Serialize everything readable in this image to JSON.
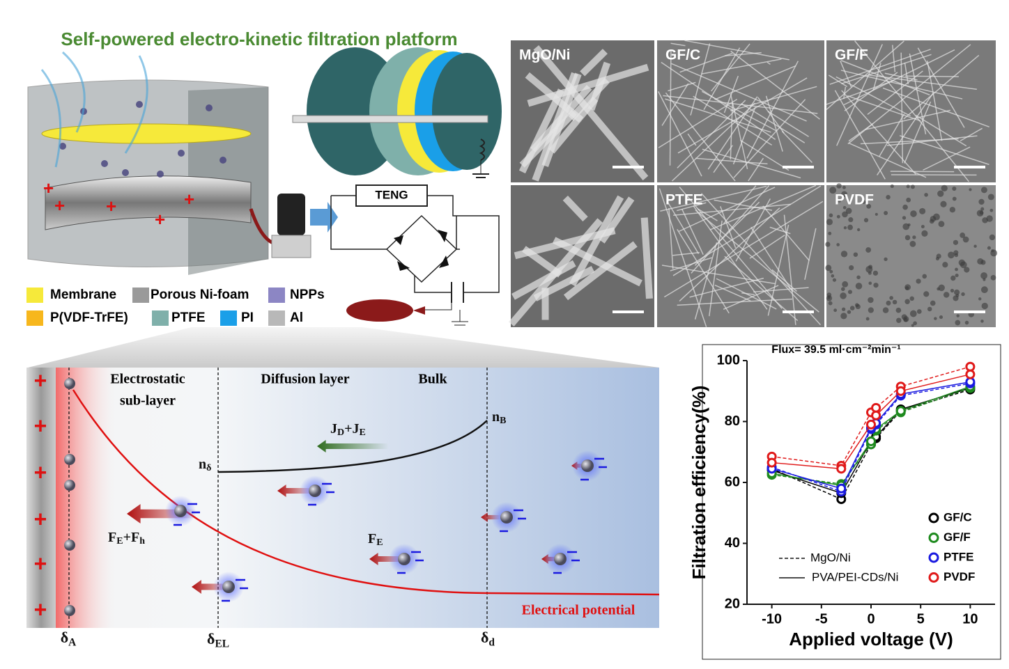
{
  "header": {
    "title": "Self-powered electro-kinetic filtration platform"
  },
  "legend": {
    "items": [
      {
        "label": "Membrane",
        "color": "#f6e93a"
      },
      {
        "label": "Porous Ni-foam",
        "color": "#9a9a9a"
      },
      {
        "label": "NPPs",
        "color": "#8c86c4"
      },
      {
        "label": "P(VDF-TrFE)",
        "color": "#f7b71d"
      },
      {
        "label": "PTFE",
        "color": "#7fb0aa"
      },
      {
        "label": "PI",
        "color": "#1a9fe8"
      },
      {
        "label": "Al",
        "color": "#b8b8b8"
      }
    ]
  },
  "teng": {
    "label": "TENG"
  },
  "sem": {
    "panels": [
      "MgO/Ni",
      "GF/C",
      "GF/F",
      "PTFE",
      "PVDF"
    ]
  },
  "diagram": {
    "electrostatic": [
      "Electrostatic",
      "sub-layer"
    ],
    "diffusion": "Diffusion layer",
    "bulk": "Bulk",
    "n_b": [
      {
        "t": "n",
        "s": "B"
      }
    ],
    "n_delta": [
      {
        "t": "n",
        "s": "δ"
      }
    ],
    "jd_je": [
      {
        "t": "J",
        "s": "D"
      },
      {
        "t": "+J",
        "s": "E"
      }
    ],
    "fe_fh": [
      {
        "t": "F",
        "s": "E"
      },
      {
        "t": "+F",
        "s": "h"
      }
    ],
    "fe": [
      {
        "t": "F",
        "s": "E"
      }
    ],
    "potential": "Electrical potential",
    "delta_a": [
      {
        "t": "δ",
        "s": "A"
      }
    ],
    "delta_el": [
      {
        "t": "δ",
        "s": "EL"
      }
    ],
    "delta_d": [
      {
        "t": "δ",
        "s": "d"
      }
    ]
  },
  "chart_data": {
    "type": "line",
    "title": "Flux= 39.5 ml·cm⁻²min⁻¹",
    "x_label": "Applied voltage (V)",
    "y_label": "Filtration efficiency(%)",
    "x": [
      -10,
      -3,
      0,
      0.5,
      3,
      10
    ],
    "xlim": [
      -12.5,
      12.5
    ],
    "xticks": [
      -10,
      -5,
      0,
      5,
      10
    ],
    "ylim": [
      20,
      100
    ],
    "yticks": [
      20,
      40,
      60,
      80,
      100
    ],
    "line_styles": [
      {
        "name": "MgO/Ni",
        "dash": "5 3"
      },
      {
        "name": "PVA/PEI-CDs/Ni",
        "dash": "none"
      }
    ],
    "series": [
      {
        "name": "GF/C",
        "color": "#000000",
        "values": [
          [
            64.5,
            54.5,
            72.5,
            74.5,
            83.5,
            90.5
          ],
          [
            64,
            56.5,
            73.5,
            75,
            84,
            91
          ]
        ]
      },
      {
        "name": "GF/F",
        "color": "#1e8a1e",
        "values": [
          [
            62.5,
            59.5,
            72.5,
            77,
            83,
            91
          ],
          [
            63,
            59,
            73.5,
            77.5,
            83.5,
            91.5
          ]
        ]
      },
      {
        "name": "PTFE",
        "color": "#1a1ae0",
        "values": [
          [
            65,
            57,
            77.5,
            79,
            88.5,
            92.5
          ],
          [
            64.5,
            58,
            78,
            79.5,
            89,
            93
          ]
        ]
      },
      {
        "name": "PVDF",
        "color": "#e01a1a",
        "values": [
          [
            68.5,
            65.5,
            83,
            84.5,
            91.5,
            98
          ],
          [
            66.5,
            64.5,
            79,
            82,
            90,
            95.5
          ]
        ]
      }
    ]
  }
}
